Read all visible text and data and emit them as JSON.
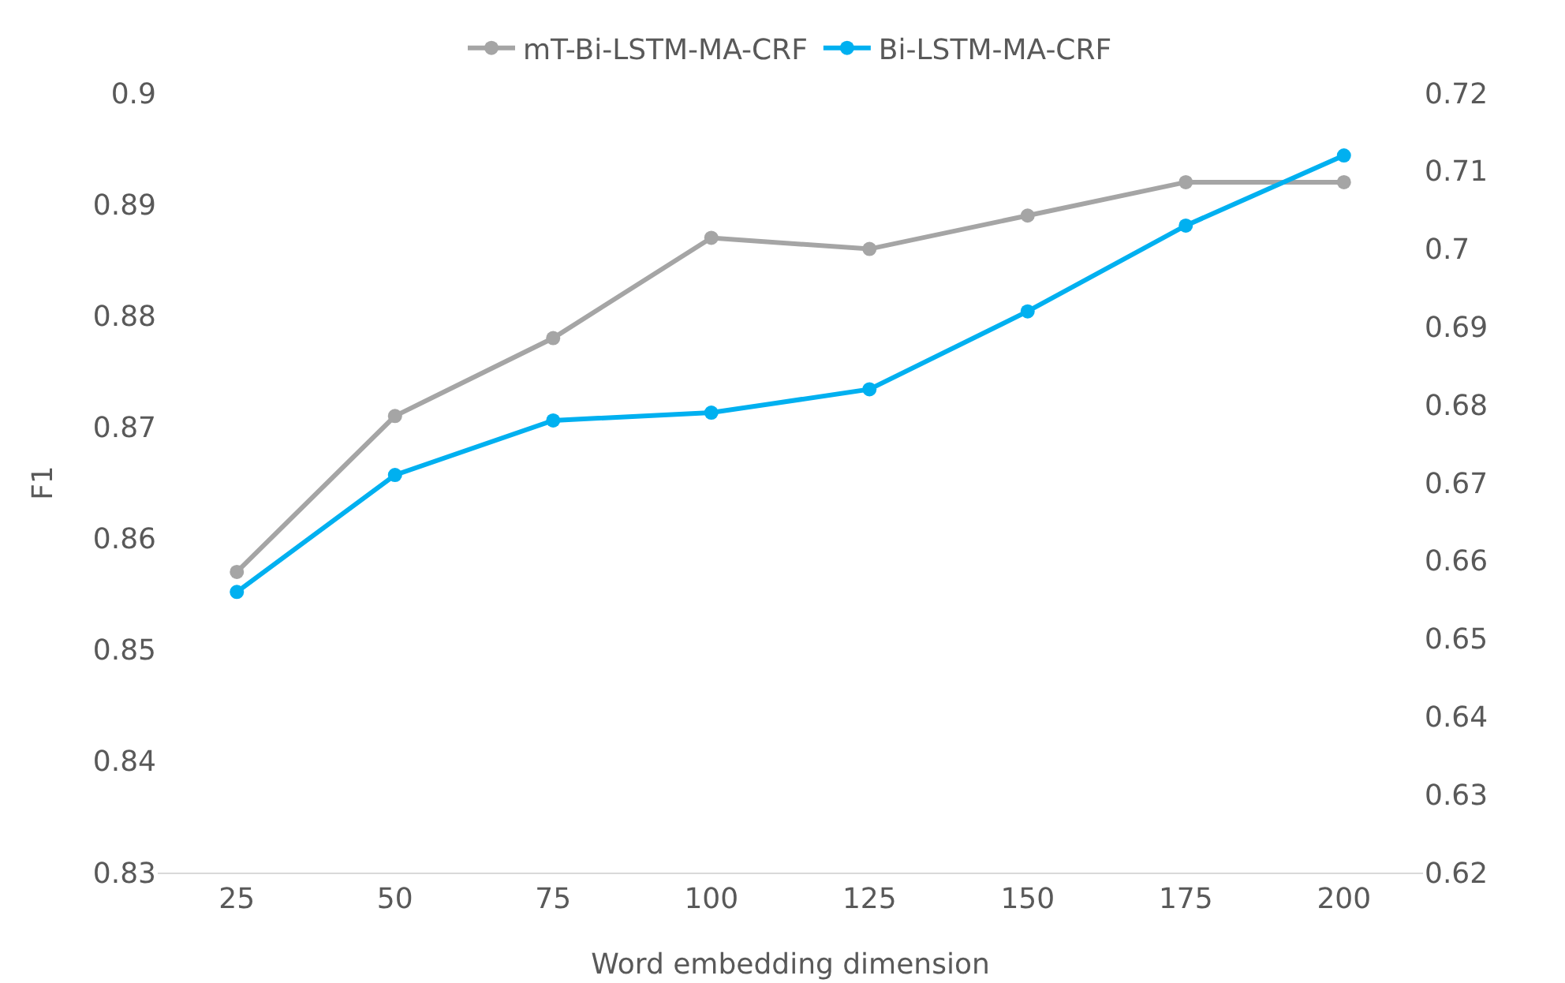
{
  "chart_data": {
    "type": "line",
    "xlabel": "Word embedding dimension",
    "ylabel": "F1",
    "categories": [
      "25",
      "50",
      "75",
      "100",
      "125",
      "150",
      "175",
      "200"
    ],
    "series": [
      {
        "name": "mT-Bi-LSTM-MA-CRF",
        "color": "#a5a5a5",
        "values": [
          0.857,
          0.871,
          0.878,
          0.887,
          0.886,
          0.889,
          0.892,
          0.892
        ]
      },
      {
        "name": "Bi-LSTM-MA-CRF",
        "color": "#00b0f0",
        "axis": "y2",
        "values": [
          0.656,
          0.671,
          0.678,
          0.679,
          0.682,
          0.692,
          0.703,
          0.712
        ]
      }
    ],
    "ylim": [
      0.83,
      0.9
    ],
    "yticks": [
      0.83,
      0.84,
      0.85,
      0.86,
      0.87,
      0.88,
      0.89,
      0.9
    ],
    "y2lim": [
      0.62,
      0.72
    ],
    "y2ticks": [
      0.62,
      0.63,
      0.64,
      0.65,
      0.66,
      0.67,
      0.68,
      0.69,
      0.7,
      0.71,
      0.72
    ],
    "legend": "top",
    "marker": "circle",
    "grid": false
  }
}
